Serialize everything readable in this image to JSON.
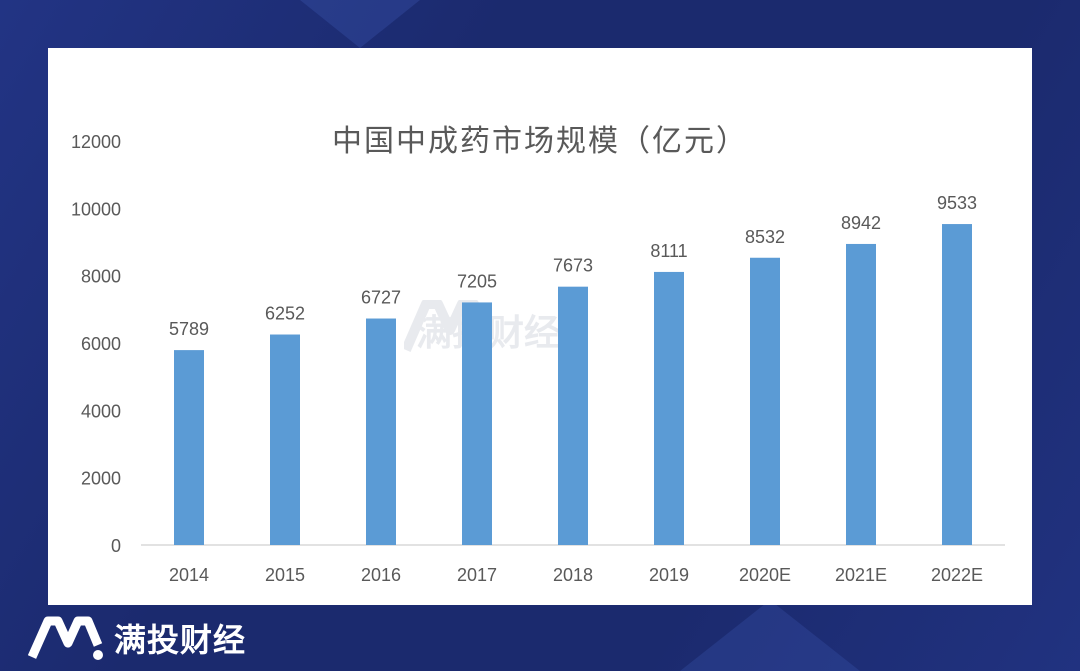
{
  "chart_data": {
    "type": "bar",
    "title": "中国中成药市场规模（亿元）",
    "categories": [
      "2014",
      "2015",
      "2016",
      "2017",
      "2018",
      "2019",
      "2020E",
      "2021E",
      "2022E"
    ],
    "values": [
      5789,
      6252,
      6727,
      7205,
      7673,
      8111,
      8532,
      8942,
      9533
    ],
    "yticks": [
      "0",
      "2000",
      "4000",
      "6000",
      "8000",
      "10000",
      "12000"
    ],
    "ylim": [
      0,
      12000
    ],
    "xlabel": "",
    "ylabel": "",
    "grid": false,
    "legend": "none",
    "bar_color": "#5b9bd5"
  },
  "watermark": {
    "text": "满投财经"
  },
  "brand": {
    "text": "满投财经"
  },
  "colors": {
    "background": "#1b2a6e",
    "panel": "#ffffff",
    "text": "#595959",
    "axis": "#d9d9d9"
  }
}
